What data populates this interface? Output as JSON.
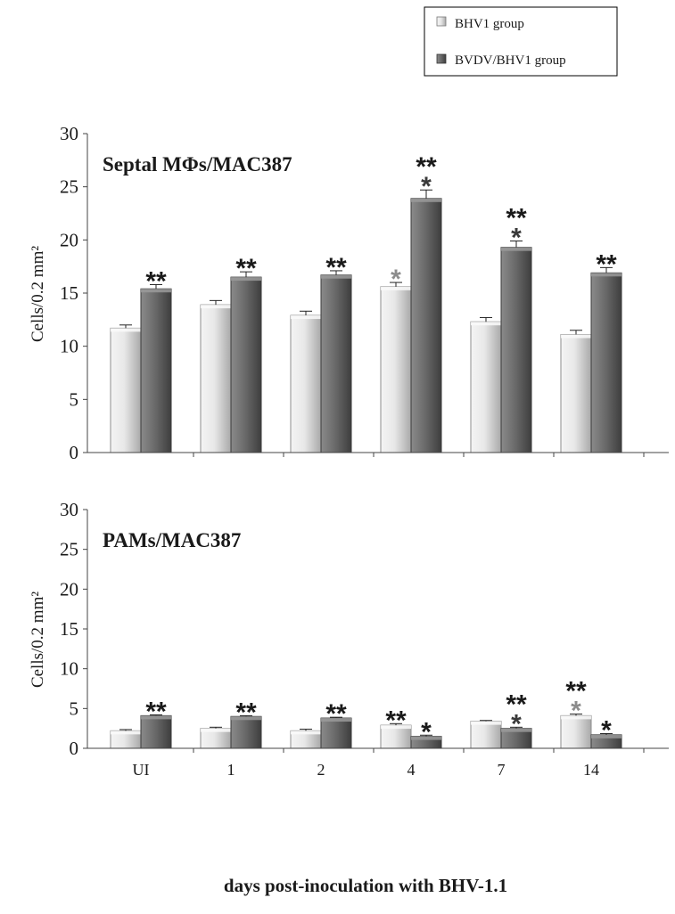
{
  "legend": {
    "items": [
      {
        "label": "BHV1 group",
        "color": "#d6d6d6"
      },
      {
        "label": "BVDV/BHV1 group",
        "color": "#666666"
      }
    ],
    "placement": "top-right"
  },
  "xlabel": "days post-inoculation with BHV-1.1",
  "chart_data": [
    {
      "type": "bar",
      "title": "Septal MΦs/MAC387",
      "ylabel": "Cells/0.2 mm²",
      "ylim": [
        0,
        30
      ],
      "yticks": [
        0,
        5,
        10,
        15,
        20,
        25,
        30
      ],
      "categories": [
        "UI",
        "1",
        "2",
        "4",
        "7",
        "14"
      ],
      "series": [
        {
          "name": "BHV1 group",
          "values": [
            11.7,
            13.9,
            12.9,
            15.6,
            12.3,
            11.1
          ],
          "errors": [
            0.3,
            0.4,
            0.4,
            0.4,
            0.4,
            0.4
          ],
          "annotations": [
            "",
            "",
            "",
            "*",
            "",
            ""
          ]
        },
        {
          "name": "BVDV/BHV1 group",
          "values": [
            15.4,
            16.5,
            16.7,
            23.9,
            19.3,
            16.9
          ],
          "errors": [
            0.4,
            0.5,
            0.4,
            0.8,
            0.6,
            0.5
          ],
          "annotations": [
            "**",
            "**",
            "**",
            "**\n*",
            "**\n*",
            "**"
          ]
        }
      ],
      "grid": false
    },
    {
      "type": "bar",
      "title": "PAMs/MAC387",
      "ylabel": "Cells/0.2 mm²",
      "ylim": [
        0,
        30
      ],
      "yticks": [
        0,
        5,
        10,
        15,
        20,
        25,
        30
      ],
      "categories": [
        "UI",
        "1",
        "2",
        "4",
        "7",
        "14"
      ],
      "series": [
        {
          "name": "BHV1 group",
          "values": [
            2.2,
            2.5,
            2.2,
            2.9,
            3.4,
            4.1
          ],
          "errors": [
            0.15,
            0.15,
            0.2,
            0.2,
            0.1,
            0.2
          ],
          "annotations": [
            "",
            "",
            "",
            "**",
            "",
            "**\n*"
          ]
        },
        {
          "name": "BVDV/BHV1 group",
          "values": [
            4.1,
            4.0,
            3.8,
            1.5,
            2.5,
            1.7
          ],
          "errors": [
            0.1,
            0.1,
            0.1,
            0.15,
            0.15,
            0.15
          ],
          "annotations": [
            "**",
            "**",
            "**",
            "*",
            "**\n*",
            "*"
          ]
        }
      ],
      "grid": false
    }
  ]
}
